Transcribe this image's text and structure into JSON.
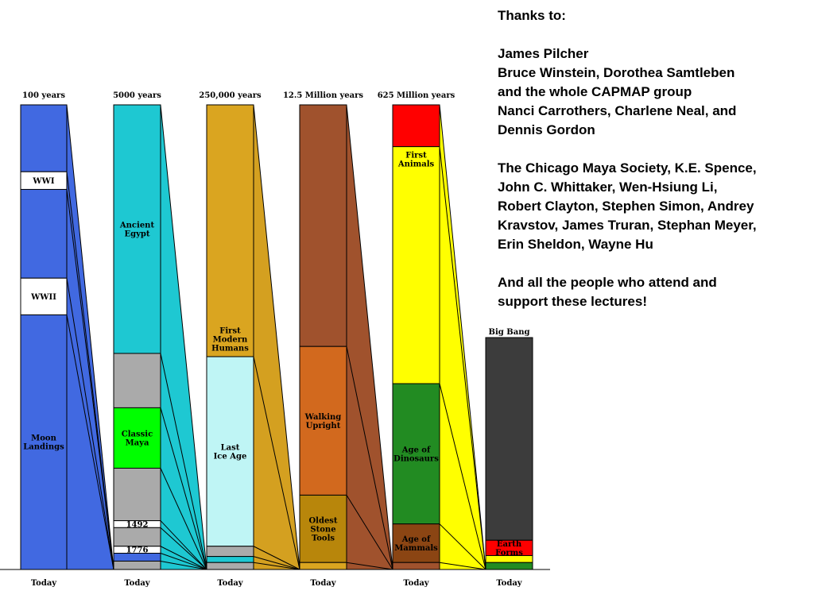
{
  "credits": {
    "heading": "Thanks to:",
    "paragraphs": [
      [
        "James Pilcher",
        "Bruce Winstein, Dorothea Samtleben",
        "and the whole CAPMAP group",
        "Nanci Carrothers, Charlene Neal, and",
        "Dennis Gordon"
      ],
      [
        "The Chicago Maya Society, K.E. Spence,",
        "John C. Whittaker,  Wen-Hsiung Li,",
        "Robert Clayton, Stephen Simon, Andrey",
        "Kravstov, James Truran, Stephan Meyer,",
        "Erin Sheldon, Wayne Hu"
      ],
      [
        "And all the people who attend and",
        "support these lectures!"
      ]
    ]
  },
  "timeline": {
    "columns": [
      {
        "top_label": "100 years",
        "bottom_label": "Today",
        "base_color": "#4169e1",
        "segments": [
          {
            "start": 0.0,
            "end": 0.144,
            "color": "#4169e1",
            "label": ""
          },
          {
            "start": 0.144,
            "end": 0.182,
            "color": "#ffffff",
            "label": "WWI"
          },
          {
            "start": 0.182,
            "end": 0.373,
            "color": "#4169e1",
            "label": ""
          },
          {
            "start": 0.373,
            "end": 0.452,
            "color": "#ffffff",
            "label": "WWII"
          },
          {
            "start": 0.452,
            "end": 1.0,
            "color": "#4169e1",
            "label": "Moon\nLandings"
          }
        ]
      },
      {
        "top_label": "5000 years",
        "bottom_label": "Today",
        "base_color": "#1ec8d2",
        "segments": [
          {
            "start": 0.0,
            "end": 0.535,
            "color": "#1ec8d2",
            "label": "Ancient\nEgypt"
          },
          {
            "start": 0.535,
            "end": 0.652,
            "color": "#aaaaaa",
            "label": ""
          },
          {
            "start": 0.652,
            "end": 0.782,
            "color": "#00ff00",
            "label": "Classic\nMaya"
          },
          {
            "start": 0.782,
            "end": 0.895,
            "color": "#aaaaaa",
            "label": ""
          },
          {
            "start": 0.895,
            "end": 0.91,
            "color": "#ffffff",
            "label": "1492"
          },
          {
            "start": 0.91,
            "end": 0.95,
            "color": "#aaaaaa",
            "label": ""
          },
          {
            "start": 0.95,
            "end": 0.965,
            "color": "#ffffff",
            "label": "1776"
          },
          {
            "start": 0.965,
            "end": 0.982,
            "color": "#4169e1",
            "label": ""
          },
          {
            "start": 0.982,
            "end": 1.0,
            "color": "#aaaaaa",
            "label": ""
          }
        ]
      },
      {
        "top_label": "250,000 years",
        "bottom_label": "Today",
        "base_color": "#d4a020",
        "segments": [
          {
            "start": 0.0,
            "end": 0.542,
            "color": "#daa520",
            "label": "First\nModern\nHumans"
          },
          {
            "start": 0.542,
            "end": 0.95,
            "color": "#bff5f5",
            "label": "Last\nIce Age"
          },
          {
            "start": 0.95,
            "end": 0.972,
            "color": "#aaaaaa",
            "label": ""
          },
          {
            "start": 0.972,
            "end": 0.985,
            "color": "#1ec8d2",
            "label": ""
          },
          {
            "start": 0.985,
            "end": 1.0,
            "color": "#aaaaaa",
            "label": ""
          }
        ]
      },
      {
        "top_label": "12.5 Million years",
        "bottom_label": "Today",
        "base_color": "#a0522d",
        "segments": [
          {
            "start": 0.0,
            "end": 0.52,
            "color": "#a0522d",
            "label": ""
          },
          {
            "start": 0.52,
            "end": 0.84,
            "color": "#d2691e",
            "label": "Walking\nUpright"
          },
          {
            "start": 0.84,
            "end": 0.985,
            "color": "#b8860b",
            "label": "Oldest\nStone\nTools"
          },
          {
            "start": 0.985,
            "end": 1.0,
            "color": "#daa520",
            "label": ""
          }
        ]
      },
      {
        "top_label": "625 Million years",
        "bottom_label": "Today",
        "base_color": "#ffff00",
        "segments": [
          {
            "start": 0.0,
            "end": 0.09,
            "color": "#ff0000",
            "label": ""
          },
          {
            "start": 0.09,
            "end": 0.6,
            "color": "#ffff00",
            "label": "First\nAnimals"
          },
          {
            "start": 0.6,
            "end": 0.902,
            "color": "#228b22",
            "label": "Age of\nDinosaurs"
          },
          {
            "start": 0.902,
            "end": 0.985,
            "color": "#8b4513",
            "label": "Age of\nMammals"
          },
          {
            "start": 0.985,
            "end": 1.0,
            "color": "#a0522d",
            "label": ""
          }
        ]
      },
      {
        "top_label": "Big Bang",
        "bottom_label": "Today",
        "base_color": "#3c3c3c",
        "segments": [
          {
            "start": 0.0,
            "end": 0.874,
            "color": "#3c3c3c",
            "label": ""
          },
          {
            "start": 0.874,
            "end": 0.94,
            "color": "#ff0000",
            "label": "Earth\nForms"
          },
          {
            "start": 0.94,
            "end": 0.97,
            "color": "#ffff00",
            "label": ""
          },
          {
            "start": 0.97,
            "end": 1.0,
            "color": "#228b22",
            "label": ""
          }
        ]
      }
    ]
  }
}
